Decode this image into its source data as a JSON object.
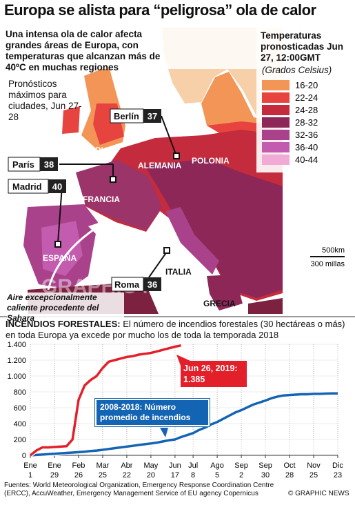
{
  "title": "Europa se alista para “peligrosa” ola de calor",
  "intro": "Una intensa ola de calor afecta grandes áreas de Europa, con temperaturas que alcanzan más de 40ºC en muchas regiones",
  "forecast_note": "Pronósticos máximos para ciudades, Jun 27-28",
  "legend": {
    "title": "Temperaturas pronosticadas Jun 27, 12:00GMT",
    "subtitle": "(Grados Celsius)",
    "items": [
      {
        "label": "16-20",
        "color": "#f39557"
      },
      {
        "label": "22-24",
        "color": "#e8443f"
      },
      {
        "label": "24-28",
        "color": "#c42b3c"
      },
      {
        "label": "28-32",
        "color": "#8c2758"
      },
      {
        "label": "32-36",
        "color": "#a9428a"
      },
      {
        "label": "36-40",
        "color": "#c35bae"
      },
      {
        "label": "40-44",
        "color": "#f1a9d6"
      }
    ]
  },
  "cities": [
    {
      "name": "Berlín",
      "temp": 37
    },
    {
      "name": "París",
      "temp": 38
    },
    {
      "name": "Madrid",
      "temp": 40
    },
    {
      "name": "Roma",
      "temp": 36
    }
  ],
  "countries": [
    "RU",
    "ALEMANIA",
    "POLONIA",
    "FRANCIA",
    "ESPAÑA",
    "ITALIA",
    "GRECIA"
  ],
  "scale": [
    "500km",
    "300 millas"
  ],
  "sahara_note": "Aire excepcionalmente caliente procedente del Sahara",
  "watermark": "GRAPHIC NEWS",
  "chart_data": {
    "type": "line",
    "title": "INCENDIOS FORESTALES:",
    "subtitle": "El número de incendios forestales (30 hectáreas o más) en toda Europa ya excede por mucho los de toda la temporada 2018",
    "categories": [
      "Ene 1",
      null,
      null,
      null,
      "Ene 29",
      null,
      null,
      null,
      "Feb 26",
      null,
      null,
      null,
      "Mar 25",
      null,
      null,
      null,
      "Abr 22",
      null,
      null,
      null,
      "May 20",
      null,
      null,
      null,
      "Jun 17",
      null,
      null,
      "Jul 8",
      null,
      null,
      null,
      "Ago 5",
      null,
      null,
      null,
      "Sep 2",
      null,
      null,
      null,
      "Sep 30",
      null,
      null,
      null,
      "Oct 28",
      null,
      null,
      null,
      "Nov 25",
      null,
      null,
      null,
      "Dic 23"
    ],
    "series": [
      {
        "color": "#e3202a",
        "values": [
          0,
          60,
          100,
          100,
          105,
          110,
          115,
          200,
          700,
          880,
          950,
          1000,
          1100,
          1180,
          1200,
          1220,
          1240,
          1250,
          1270,
          1280,
          1290,
          1310,
          1330,
          1350,
          1370,
          1385,
          null,
          null,
          null,
          null,
          null,
          null,
          null,
          null,
          null,
          null,
          null,
          null,
          null,
          null,
          null,
          null,
          null,
          null,
          null,
          null,
          null,
          null,
          null,
          null,
          null,
          null
        ]
      },
      {
        "name": "2008-2018: Número promedio de incendios",
        "color": "#1464b4",
        "values": [
          0,
          5,
          10,
          15,
          20,
          25,
          30,
          35,
          40,
          45,
          55,
          60,
          70,
          80,
          90,
          100,
          110,
          120,
          130,
          140,
          150,
          160,
          175,
          190,
          200,
          230,
          255,
          280,
          320,
          350,
          390,
          420,
          460,
          500,
          540,
          570,
          605,
          640,
          665,
          690,
          720,
          740,
          755,
          760,
          765,
          770,
          770,
          775,
          775,
          778,
          780,
          780
        ]
      }
    ],
    "annotation": "Jun 26, 2019: 1.385",
    "ylim": [
      0,
      1400
    ],
    "yticks": [
      0,
      200,
      400,
      600,
      800,
      {
        "value": 1000,
        "label": "1.000"
      },
      {
        "value": 1200,
        "label": "1.200"
      },
      {
        "value": 1400,
        "label": "1.400"
      }
    ],
    "grid": true
  },
  "footer": {
    "sources": "Fuentes: World Meteorological Organization, Emergency Response Coordination Centre (ERCC), AccuWeather, Emergency Management Service of EU agency Copernicus",
    "credit": "© GRAPHIC NEWS"
  }
}
